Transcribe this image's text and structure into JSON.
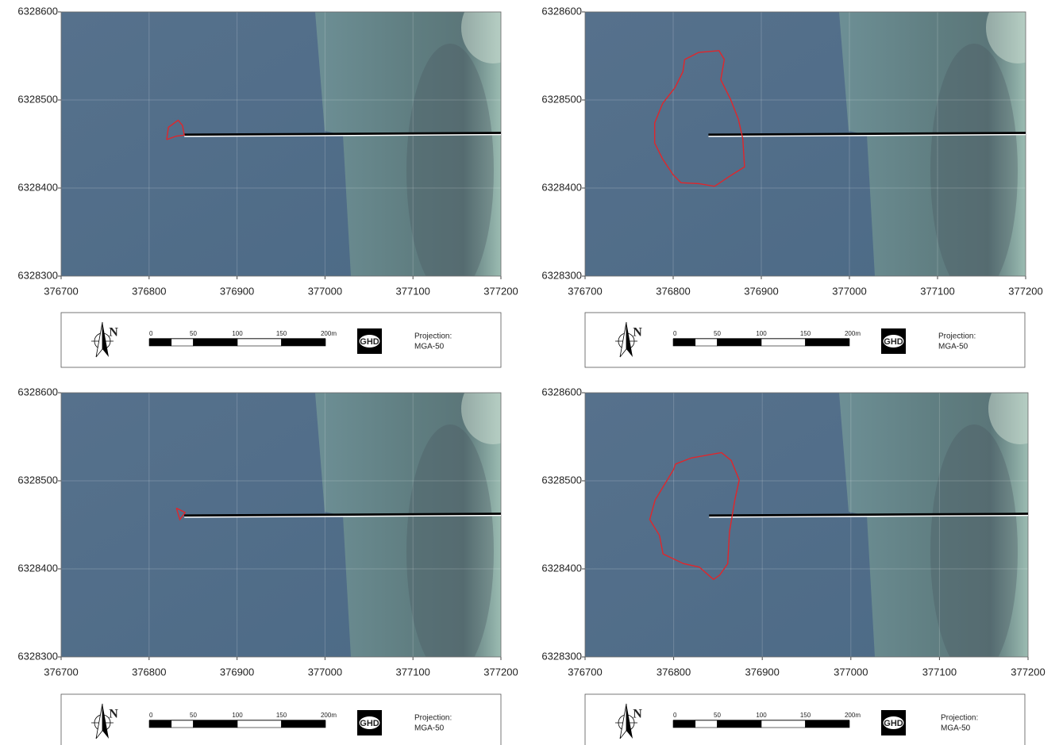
{
  "panels": [
    {
      "xlim": [
        376700,
        377200
      ],
      "ylim": [
        6328300,
        6328600
      ],
      "xticks": [
        376700,
        376800,
        376900,
        377000,
        377100,
        377200
      ],
      "yticks": [
        6328300,
        6328400,
        6328500,
        6328600
      ],
      "outline": {
        "x": [
          376820,
          376822,
          376833,
          376838,
          376840,
          376831,
          376820
        ],
        "y": [
          6328455,
          6328469,
          6328477,
          6328471,
          6328460,
          6328459,
          6328455
        ]
      },
      "pipeline": {
        "x": [
          376840,
          377200
        ],
        "y": [
          6328460,
          6328462
        ]
      },
      "legend": {
        "north": "N",
        "scale_labels": [
          "0",
          "50",
          "100",
          "150",
          "200m"
        ],
        "logo": "GHD",
        "projection": [
          "Projection:",
          "MGA-50"
        ]
      }
    },
    {
      "xlim": [
        376700,
        377200
      ],
      "ylim": [
        6328300,
        6328600
      ],
      "xticks": [
        376700,
        376800,
        376900,
        377000,
        377100,
        377200
      ],
      "yticks": [
        6328300,
        6328400,
        6328500,
        6328600
      ],
      "outline": {
        "x": [
          376813,
          376829,
          376852,
          376858,
          376854,
          376865,
          376874,
          376879,
          376881,
          376865,
          376847,
          376829,
          376809,
          376800,
          376788,
          376779,
          376779,
          376788,
          376802,
          376811,
          376813
        ],
        "y": [
          6328546,
          6328554,
          6328556,
          6328546,
          6328523,
          6328501,
          6328478,
          6328456,
          6328424,
          6328414,
          6328402,
          6328405,
          6328406,
          6328415,
          6328433,
          6328451,
          6328474,
          6328496,
          6328514,
          6328532,
          6328546
        ]
      },
      "pipeline": {
        "x": [
          376840,
          377200
        ],
        "y": [
          6328460,
          6328462
        ]
      },
      "legend": {
        "north": "N",
        "scale_labels": [
          "0",
          "50",
          "100",
          "150",
          "200m"
        ],
        "logo": "GHD",
        "projection": [
          "Projection:",
          "MGA-50"
        ]
      }
    },
    {
      "xlim": [
        376700,
        377200
      ],
      "ylim": [
        6328300,
        6328600
      ],
      "xticks": [
        376700,
        376800,
        376900,
        377000,
        377100,
        377200
      ],
      "yticks": [
        6328300,
        6328400,
        6328500,
        6328600
      ],
      "outline": {
        "x": [
          376831,
          376841,
          376835,
          376831
        ],
        "y": [
          6328469,
          6328464,
          6328456,
          6328469
        ]
      },
      "pipeline": {
        "x": [
          376840,
          377200
        ],
        "y": [
          6328460,
          6328462
        ]
      },
      "legend": {
        "north": "N",
        "scale_labels": [
          "0",
          "50",
          "100",
          "150",
          "200m"
        ],
        "logo": "GHD",
        "projection": [
          "Projection:",
          "MGA-50"
        ]
      }
    },
    {
      "xlim": [
        376700,
        377200
      ],
      "ylim": [
        6328300,
        6328600
      ],
      "xticks": [
        376700,
        376800,
        376900,
        377000,
        377100,
        377200
      ],
      "yticks": [
        6328300,
        6328400,
        6328500,
        6328600
      ],
      "outline": {
        "x": [
          376802,
          376820,
          376854,
          376865,
          376874,
          376869,
          376863,
          376861,
          376852,
          376845,
          376829,
          376811,
          376788,
          376784,
          376773,
          376779,
          376800,
          376802
        ],
        "y": [
          6328519,
          6328526,
          6328532,
          6328523,
          6328501,
          6328478,
          6328442,
          6328406,
          6328393,
          6328388,
          6328402,
          6328406,
          6328417,
          6328438,
          6328456,
          6328478,
          6328513,
          6328519
        ]
      },
      "pipeline": {
        "x": [
          376840,
          377200
        ],
        "y": [
          6328460,
          6328462
        ]
      },
      "legend": {
        "north": "N",
        "scale_labels": [
          "0",
          "50",
          "100",
          "150",
          "200m"
        ],
        "logo": "GHD",
        "projection": [
          "Projection:",
          "MGA-50"
        ]
      }
    }
  ]
}
